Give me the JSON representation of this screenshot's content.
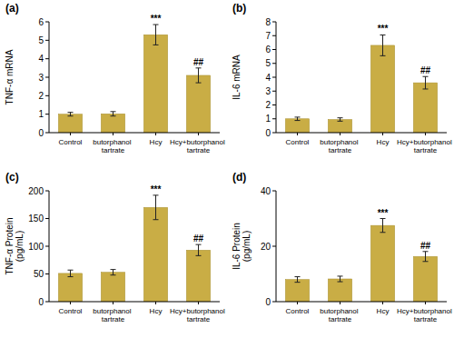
{
  "chart_data": [
    {
      "type": "bar",
      "title": "(a)",
      "y_label": [
        "TNF-α mRNA"
      ],
      "categories": [
        "Control",
        "butorphanol tartrate",
        "Hcy",
        "Hcy+butorphanol tartrate"
      ],
      "values": [
        1.0,
        1.02,
        5.3,
        3.1
      ],
      "errors": [
        0.1,
        0.12,
        0.55,
        0.4
      ],
      "significance": [
        null,
        null,
        "***",
        "##"
      ],
      "color": "#c9ad45",
      "ylim": [
        0,
        6
      ],
      "yticks": [
        0,
        1,
        2,
        3,
        4,
        5,
        6
      ],
      "grid": false
    },
    {
      "type": "bar",
      "title": "(b)",
      "y_label": [
        "IL-6 mRNA"
      ],
      "categories": [
        "Control",
        "butorphanol tartrate",
        "Hcy",
        "Hcy+butorphanol tartrate"
      ],
      "values": [
        1.0,
        0.95,
        6.3,
        3.6
      ],
      "errors": [
        0.12,
        0.12,
        0.75,
        0.45
      ],
      "significance": [
        null,
        null,
        "***",
        "##"
      ],
      "color": "#c9ad45",
      "ylim": [
        0,
        8
      ],
      "yticks": [
        0,
        1,
        2,
        3,
        4,
        5,
        6,
        7,
        8
      ],
      "grid": false
    },
    {
      "type": "bar",
      "title": "(c)",
      "y_label": [
        "TNF-α Protein",
        "(pg/mL)"
      ],
      "categories": [
        "Control",
        "butorphanol tartrate",
        "Hcy",
        "Hcy+butorphanol tartrate"
      ],
      "values": [
        51,
        53,
        170,
        93
      ],
      "errors": [
        6,
        5,
        22,
        10
      ],
      "significance": [
        null,
        null,
        "***",
        "##"
      ],
      "color": "#c9ad45",
      "ylim": [
        0,
        200
      ],
      "yticks": [
        0,
        50,
        100,
        150,
        200
      ],
      "grid": false
    },
    {
      "type": "bar",
      "title": "(d)",
      "y_label": [
        "IL-6 Protein",
        "(pg/mL)"
      ],
      "categories": [
        "Control",
        "butorphanol tartrate",
        "Hcy",
        "Hcy+butorphanol tartrate"
      ],
      "values": [
        8,
        8.2,
        27.5,
        16.3
      ],
      "errors": [
        1,
        1,
        2.5,
        1.8
      ],
      "significance": [
        null,
        null,
        "***",
        "##"
      ],
      "color": "#c9ad45",
      "ylim": [
        0,
        40
      ],
      "yticks": [
        0,
        20,
        40
      ],
      "grid": false
    }
  ]
}
